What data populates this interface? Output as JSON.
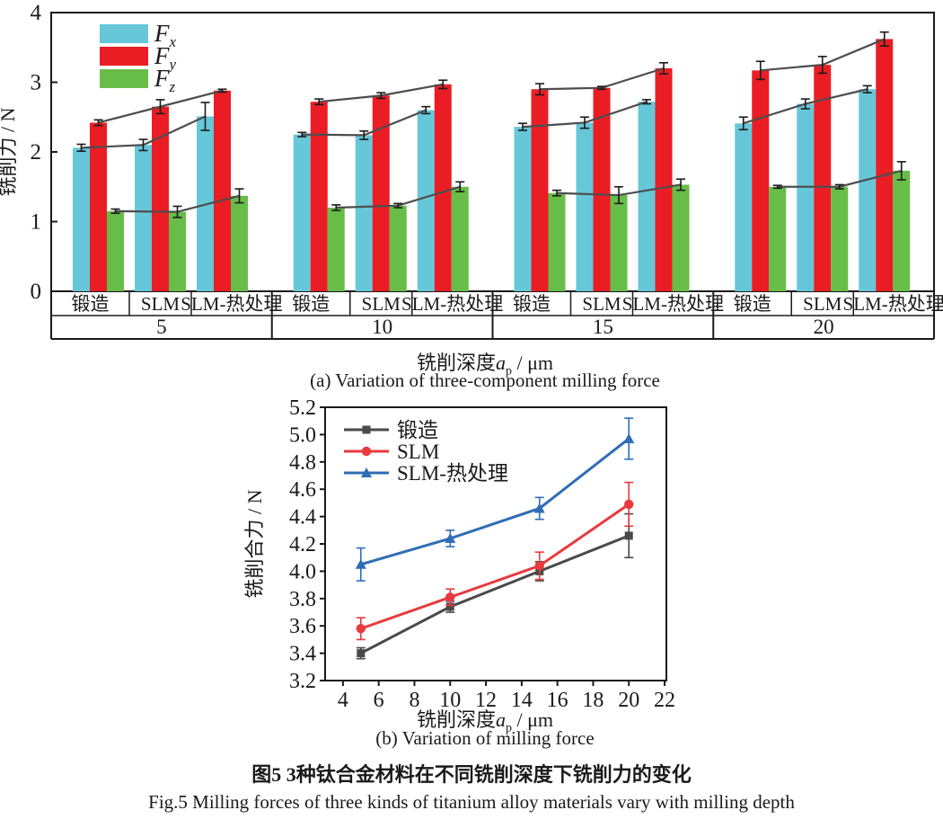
{
  "figure": {
    "caption_zh": "图5  3种钛合金材料在不同铣削深度下铣削力的变化",
    "caption_en": "Fig.5  Milling forces of three kinds of titanium alloy materials vary with milling depth"
  },
  "colors": {
    "axis": "#1a1a1a",
    "bar_fx": "#66c7d9",
    "bar_fy": "#ea1d25",
    "bar_fz": "#68bd48",
    "connector": "#4d4d4d",
    "line_forged": "#4a4a4a",
    "line_slm": "#e83a3e",
    "line_slm_ht": "#2f6db5"
  },
  "chart_data": [
    {
      "id": "a",
      "type": "bar",
      "caption": "(a) Variation of three-component milling force",
      "xlabel_parts": {
        "prefix": "铣削深度",
        "var": "a",
        "sub": "p",
        "suffix": " / μm"
      },
      "ylabel": "铣削力 / N",
      "ylim": [
        0,
        4
      ],
      "yticks": [
        0,
        1,
        2,
        3,
        4
      ],
      "group_labels": [
        "5",
        "10",
        "15",
        "20"
      ],
      "materials": [
        "锻造",
        "SLM",
        "SLM-热处理"
      ],
      "legend": [
        {
          "base": "F",
          "sub": "x",
          "color": "#66c7d9"
        },
        {
          "base": "F",
          "sub": "y",
          "color": "#ea1d25"
        },
        {
          "base": "F",
          "sub": "z",
          "color": "#68bd48"
        }
      ],
      "connector_color": "#4d4d4d",
      "series": [
        {
          "name": "Fx",
          "color": "#66c7d9",
          "values": [
            [
              2.06,
              2.1,
              2.51
            ],
            [
              2.25,
              2.24,
              2.6
            ],
            [
              2.36,
              2.42,
              2.72
            ],
            [
              2.41,
              2.69,
              2.9
            ]
          ],
          "errors": [
            [
              0.05,
              0.08,
              0.2
            ],
            [
              0.03,
              0.06,
              0.05
            ],
            [
              0.05,
              0.08,
              0.03
            ],
            [
              0.09,
              0.07,
              0.05
            ]
          ]
        },
        {
          "name": "Fy",
          "color": "#ea1d25",
          "values": [
            [
              2.42,
              2.65,
              2.88
            ],
            [
              2.72,
              2.81,
              2.97
            ],
            [
              2.9,
              2.92,
              3.2
            ],
            [
              3.17,
              3.25,
              3.62
            ]
          ],
          "errors": [
            [
              0.04,
              0.1,
              0.02
            ],
            [
              0.04,
              0.04,
              0.06
            ],
            [
              0.08,
              0.02,
              0.08
            ],
            [
              0.13,
              0.12,
              0.1
            ]
          ]
        },
        {
          "name": "Fz",
          "color": "#68bd48",
          "values": [
            [
              1.15,
              1.14,
              1.37
            ],
            [
              1.2,
              1.23,
              1.5
            ],
            [
              1.41,
              1.38,
              1.53
            ],
            [
              1.5,
              1.5,
              1.73
            ]
          ],
          "errors": [
            [
              0.03,
              0.08,
              0.1
            ],
            [
              0.04,
              0.03,
              0.07
            ],
            [
              0.04,
              0.12,
              0.08
            ],
            [
              0.02,
              0.03,
              0.13
            ]
          ]
        }
      ]
    },
    {
      "id": "b",
      "type": "line",
      "caption": "(b) Variation of milling force",
      "xlabel_parts": {
        "prefix": "铣削深度",
        "var": "a",
        "sub": "p",
        "suffix": " / μm"
      },
      "ylabel": "铣削合力 / N",
      "xlim": [
        3,
        22.1
      ],
      "ylim": [
        3.2,
        5.2
      ],
      "xticks": [
        4,
        6,
        8,
        10,
        12,
        14,
        16,
        18,
        20,
        22
      ],
      "yticks": [
        3.2,
        3.4,
        3.6,
        3.8,
        4.0,
        4.2,
        4.4,
        4.6,
        4.8,
        5.0,
        5.2
      ],
      "x": [
        5,
        10,
        15,
        20
      ],
      "series": [
        {
          "name": "锻造",
          "marker": "square",
          "color": "#4a4a4a",
          "values": [
            3.4,
            3.74,
            4.0,
            4.26
          ],
          "errors": [
            0.04,
            0.04,
            0.07,
            0.16
          ]
        },
        {
          "name": "SLM",
          "marker": "circle",
          "color": "#e83a3e",
          "values": [
            3.58,
            3.81,
            4.04,
            4.49
          ],
          "errors": [
            0.08,
            0.06,
            0.1,
            0.16
          ]
        },
        {
          "name": "SLM-热处理",
          "marker": "triangle",
          "color": "#2f6db5",
          "values": [
            4.05,
            4.24,
            4.46,
            4.97
          ],
          "errors": [
            0.12,
            0.06,
            0.08,
            0.15
          ]
        }
      ]
    }
  ]
}
